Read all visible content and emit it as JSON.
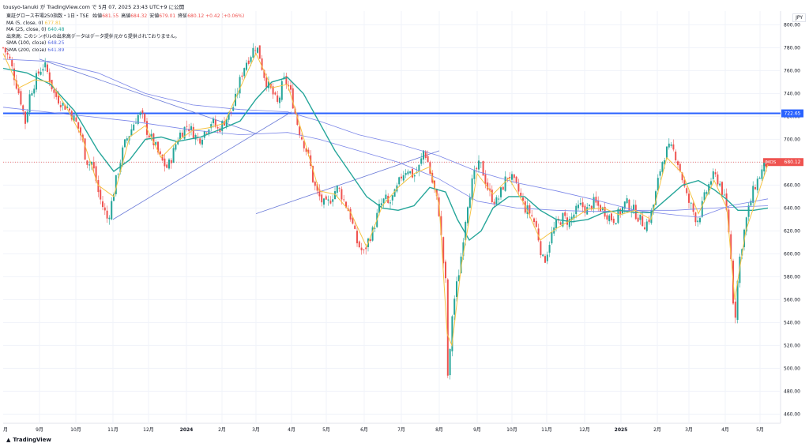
{
  "attribution": "tousyo-tanuki が TradingView.com で 5月 07, 2025 23:43 UTC+9 に公開",
  "legend": {
    "title": "東証グロース市場250指数・1日・TSE",
    "ohlc": [
      {
        "label": "始値",
        "value": "681.55"
      },
      {
        "label": "高値",
        "value": "684.32"
      },
      {
        "label": "安値",
        "value": "679.01"
      },
      {
        "label": "終値",
        "value": "680.12"
      }
    ],
    "change": "+0.42 (+0.06%)",
    "indicators": [
      {
        "name": "MA (5, close, 0)",
        "value": "677.81",
        "color": "#f6c343"
      },
      {
        "name": "MA (25, close, 0)",
        "value": "640.48",
        "color": "#26a69a"
      },
      {
        "name": "出来高: このシンボルの出来高データはデータ提供元から提供されておりません。",
        "value": "",
        "color": "#131722"
      },
      {
        "name": "SMA (100, close)",
        "value": "648.25",
        "color": "#5b6ee1"
      },
      {
        "name": "SMA (200, close)",
        "value": "641.89",
        "color": "#5b6ee1"
      }
    ]
  },
  "currency": "JPY",
  "branding": "TradingView",
  "colors": {
    "up": "#26a69a",
    "down": "#ef5350",
    "ma5": "#f6c343",
    "ma25": "#26a69a",
    "sma": "#7b86e8",
    "hline": "#2962ff",
    "last": "#ef5350",
    "grid": "#f0f3fa"
  },
  "chart_data": {
    "type": "candlestick",
    "symbol": "東証グロース市場250指数",
    "ylim": [
      452,
      812
    ],
    "y_ticks": [
      460,
      480,
      500,
      520,
      540,
      560,
      580,
      600,
      620,
      640,
      660,
      680,
      700,
      720,
      740,
      760,
      780,
      800
    ],
    "x_ticks": [
      "9月",
      "10月",
      "11月",
      "12月",
      "2024",
      "2月",
      "3月",
      "4月",
      "5月",
      "6月",
      "7月",
      "8月",
      "9月",
      "10月",
      "11月",
      "12月",
      "2025",
      "2月",
      "3月",
      "4月",
      "5月"
    ],
    "first_tick_label": "月",
    "horizontal_line": {
      "value": 722.65,
      "label": "722.65"
    },
    "last_price": {
      "value": 680.12,
      "label": "680.12",
      "tag": "JMOS"
    },
    "trendlines": [
      {
        "from": [
          "9月",
          770
        ],
        "to": [
          "3月",
          705
        ]
      },
      {
        "from": [
          "11月",
          630
        ],
        "to": [
          "4月",
          724
        ]
      },
      {
        "from": [
          "8月",
          690
        ],
        "to": [
          "3月",
          635
        ]
      }
    ],
    "price_path": [
      [
        0,
        780
      ],
      [
        8,
        770
      ],
      [
        16,
        750
      ],
      [
        22,
        735
      ],
      [
        28,
        715
      ],
      [
        34,
        740
      ],
      [
        40,
        750
      ],
      [
        46,
        760
      ],
      [
        52,
        765
      ],
      [
        58,
        755
      ],
      [
        64,
        740
      ],
      [
        70,
        735
      ],
      [
        76,
        730
      ],
      [
        82,
        728
      ],
      [
        88,
        720
      ],
      [
        94,
        712
      ],
      [
        100,
        700
      ],
      [
        104,
        685
      ],
      [
        108,
        678
      ],
      [
        112,
        680
      ],
      [
        116,
        670
      ],
      [
        120,
        655
      ],
      [
        124,
        645
      ],
      [
        128,
        638
      ],
      [
        132,
        630
      ],
      [
        136,
        640
      ],
      [
        140,
        655
      ],
      [
        144,
        668
      ],
      [
        148,
        680
      ],
      [
        152,
        692
      ],
      [
        156,
        700
      ],
      [
        160,
        705
      ],
      [
        164,
        712
      ],
      [
        168,
        718
      ],
      [
        172,
        722
      ],
      [
        176,
        720
      ],
      [
        180,
        710
      ],
      [
        184,
        705
      ],
      [
        188,
        700
      ],
      [
        192,
        695
      ],
      [
        196,
        688
      ],
      [
        200,
        682
      ],
      [
        204,
        678
      ],
      [
        208,
        675
      ],
      [
        212,
        682
      ],
      [
        216,
        690
      ],
      [
        220,
        700
      ],
      [
        224,
        705
      ],
      [
        228,
        708
      ],
      [
        232,
        712
      ],
      [
        236,
        710
      ],
      [
        240,
        706
      ],
      [
        244,
        702
      ],
      [
        248,
        700
      ],
      [
        252,
        704
      ],
      [
        256,
        708
      ],
      [
        260,
        712
      ],
      [
        264,
        716
      ],
      [
        268,
        712
      ],
      [
        272,
        708
      ],
      [
        276,
        712
      ],
      [
        280,
        716
      ],
      [
        284,
        720
      ],
      [
        288,
        724
      ],
      [
        292,
        730
      ],
      [
        296,
        740
      ],
      [
        300,
        752
      ],
      [
        304,
        762
      ],
      [
        308,
        768
      ],
      [
        312,
        772
      ],
      [
        316,
        778
      ],
      [
        320,
        782
      ],
      [
        324,
        775
      ],
      [
        328,
        762
      ],
      [
        332,
        752
      ],
      [
        336,
        746
      ],
      [
        340,
        742
      ],
      [
        344,
        735
      ],
      [
        348,
        730
      ],
      [
        352,
        745
      ],
      [
        356,
        752
      ],
      [
        360,
        748
      ],
      [
        364,
        740
      ],
      [
        368,
        728
      ],
      [
        372,
        715
      ],
      [
        376,
        705
      ],
      [
        380,
        698
      ],
      [
        384,
        690
      ],
      [
        388,
        680
      ],
      [
        392,
        665
      ],
      [
        396,
        655
      ],
      [
        400,
        650
      ],
      [
        404,
        645
      ],
      [
        408,
        642
      ],
      [
        412,
        645
      ],
      [
        416,
        650
      ],
      [
        420,
        655
      ],
      [
        424,
        658
      ],
      [
        428,
        652
      ],
      [
        432,
        645
      ],
      [
        436,
        640
      ],
      [
        440,
        632
      ],
      [
        444,
        620
      ],
      [
        448,
        610
      ],
      [
        452,
        605
      ],
      [
        456,
        600
      ],
      [
        460,
        608
      ],
      [
        464,
        615
      ],
      [
        468,
        620
      ],
      [
        472,
        630
      ],
      [
        476,
        640
      ],
      [
        480,
        645
      ],
      [
        484,
        648
      ],
      [
        488,
        642
      ],
      [
        492,
        648
      ],
      [
        496,
        652
      ],
      [
        500,
        660
      ],
      [
        504,
        668
      ],
      [
        508,
        672
      ],
      [
        512,
        675
      ],
      [
        516,
        670
      ],
      [
        520,
        668
      ],
      [
        524,
        672
      ],
      [
        528,
        678
      ],
      [
        532,
        690
      ],
      [
        536,
        685
      ],
      [
        540,
        672
      ],
      [
        544,
        660
      ],
      [
        548,
        650
      ],
      [
        552,
        635
      ],
      [
        556,
        600
      ],
      [
        560,
        575
      ],
      [
        562,
        500
      ],
      [
        564,
        485
      ],
      [
        566,
        520
      ],
      [
        568,
        545
      ],
      [
        572,
        565
      ],
      [
        576,
        580
      ],
      [
        580,
        600
      ],
      [
        584,
        625
      ],
      [
        588,
        645
      ],
      [
        592,
        658
      ],
      [
        596,
        668
      ],
      [
        600,
        675
      ],
      [
        604,
        678
      ],
      [
        608,
        670
      ],
      [
        612,
        660
      ],
      [
        616,
        652
      ],
      [
        620,
        648
      ],
      [
        624,
        645
      ],
      [
        628,
        650
      ],
      [
        632,
        658
      ],
      [
        636,
        665
      ],
      [
        640,
        670
      ],
      [
        644,
        665
      ],
      [
        648,
        660
      ],
      [
        652,
        655
      ],
      [
        656,
        648
      ],
      [
        660,
        640
      ],
      [
        664,
        638
      ],
      [
        668,
        635
      ],
      [
        672,
        628
      ],
      [
        676,
        620
      ],
      [
        680,
        605
      ],
      [
        684,
        592
      ],
      [
        688,
        600
      ],
      [
        692,
        612
      ],
      [
        696,
        620
      ],
      [
        700,
        625
      ],
      [
        704,
        628
      ],
      [
        708,
        632
      ],
      [
        712,
        630
      ],
      [
        716,
        628
      ],
      [
        720,
        632
      ],
      [
        724,
        636
      ],
      [
        728,
        640
      ],
      [
        732,
        642
      ],
      [
        736,
        640
      ],
      [
        740,
        638
      ],
      [
        744,
        642
      ],
      [
        748,
        645
      ],
      [
        752,
        642
      ],
      [
        756,
        640
      ],
      [
        760,
        638
      ],
      [
        764,
        635
      ],
      [
        768,
        632
      ],
      [
        772,
        630
      ],
      [
        776,
        632
      ],
      [
        780,
        636
      ],
      [
        784,
        640
      ],
      [
        788,
        645
      ],
      [
        792,
        642
      ],
      [
        796,
        640
      ],
      [
        800,
        636
      ],
      [
        804,
        632
      ],
      [
        808,
        628
      ],
      [
        812,
        626
      ],
      [
        816,
        628
      ],
      [
        820,
        635
      ],
      [
        824,
        645
      ],
      [
        828,
        660
      ],
      [
        832,
        675
      ],
      [
        836,
        685
      ],
      [
        840,
        690
      ],
      [
        844,
        692
      ],
      [
        848,
        690
      ],
      [
        852,
        685
      ],
      [
        856,
        675
      ],
      [
        860,
        665
      ],
      [
        864,
        652
      ],
      [
        868,
        645
      ],
      [
        872,
        640
      ],
      [
        876,
        632
      ],
      [
        880,
        630
      ],
      [
        884,
        640
      ],
      [
        888,
        650
      ],
      [
        892,
        658
      ],
      [
        896,
        665
      ],
      [
        900,
        668
      ],
      [
        904,
        665
      ],
      [
        908,
        660
      ],
      [
        912,
        650
      ],
      [
        916,
        635
      ],
      [
        920,
        610
      ],
      [
        922,
        585
      ],
      [
        924,
        560
      ],
      [
        926,
        540
      ],
      [
        928,
        560
      ],
      [
        930,
        580
      ],
      [
        932,
        595
      ],
      [
        936,
        612
      ],
      [
        940,
        628
      ],
      [
        944,
        640
      ],
      [
        948,
        652
      ],
      [
        952,
        660
      ],
      [
        956,
        666
      ],
      [
        960,
        672
      ],
      [
        964,
        676
      ],
      [
        968,
        680
      ]
    ],
    "ma5_path": [
      [
        0,
        775
      ],
      [
        20,
        745
      ],
      [
        40,
        752
      ],
      [
        60,
        750
      ],
      [
        80,
        728
      ],
      [
        100,
        702
      ],
      [
        120,
        660
      ],
      [
        140,
        650
      ],
      [
        160,
        702
      ],
      [
        180,
        712
      ],
      [
        200,
        684
      ],
      [
        220,
        698
      ],
      [
        240,
        708
      ],
      [
        260,
        710
      ],
      [
        280,
        714
      ],
      [
        300,
        745
      ],
      [
        320,
        775
      ],
      [
        340,
        745
      ],
      [
        360,
        748
      ],
      [
        380,
        702
      ],
      [
        400,
        655
      ],
      [
        420,
        652
      ],
      [
        440,
        636
      ],
      [
        460,
        606
      ],
      [
        480,
        642
      ],
      [
        500,
        658
      ],
      [
        520,
        670
      ],
      [
        540,
        676
      ],
      [
        552,
        642
      ],
      [
        562,
        530
      ],
      [
        568,
        520
      ],
      [
        580,
        590
      ],
      [
        600,
        670
      ],
      [
        620,
        652
      ],
      [
        640,
        666
      ],
      [
        660,
        643
      ],
      [
        680,
        612
      ],
      [
        700,
        622
      ],
      [
        720,
        630
      ],
      [
        740,
        639
      ],
      [
        760,
        640
      ],
      [
        780,
        634
      ],
      [
        800,
        638
      ],
      [
        820,
        630
      ],
      [
        840,
        684
      ],
      [
        860,
        670
      ],
      [
        880,
        635
      ],
      [
        900,
        664
      ],
      [
        916,
        640
      ],
      [
        926,
        560
      ],
      [
        940,
        620
      ],
      [
        968,
        678
      ]
    ],
    "ma25_path": [
      [
        0,
        762
      ],
      [
        30,
        758
      ],
      [
        60,
        748
      ],
      [
        90,
        725
      ],
      [
        120,
        690
      ],
      [
        140,
        672
      ],
      [
        160,
        682
      ],
      [
        180,
        700
      ],
      [
        200,
        702
      ],
      [
        220,
        698
      ],
      [
        250,
        702
      ],
      [
        280,
        710
      ],
      [
        300,
        716
      ],
      [
        320,
        735
      ],
      [
        340,
        750
      ],
      [
        360,
        754
      ],
      [
        380,
        740
      ],
      [
        400,
        715
      ],
      [
        420,
        690
      ],
      [
        440,
        670
      ],
      [
        460,
        650
      ],
      [
        480,
        640
      ],
      [
        500,
        638
      ],
      [
        520,
        642
      ],
      [
        540,
        658
      ],
      [
        560,
        654
      ],
      [
        575,
        630
      ],
      [
        590,
        612
      ],
      [
        605,
        620
      ],
      [
        620,
        640
      ],
      [
        640,
        650
      ],
      [
        660,
        650
      ],
      [
        680,
        638
      ],
      [
        700,
        630
      ],
      [
        720,
        628
      ],
      [
        740,
        630
      ],
      [
        760,
        636
      ],
      [
        780,
        638
      ],
      [
        800,
        636
      ],
      [
        820,
        636
      ],
      [
        840,
        648
      ],
      [
        860,
        660
      ],
      [
        880,
        664
      ],
      [
        900,
        656
      ],
      [
        915,
        648
      ],
      [
        930,
        638
      ],
      [
        950,
        638
      ],
      [
        968,
        640
      ]
    ],
    "sma100_path": [
      [
        0,
        770
      ],
      [
        60,
        768
      ],
      [
        120,
        758
      ],
      [
        180,
        740
      ],
      [
        240,
        730
      ],
      [
        300,
        726
      ],
      [
        360,
        724
      ],
      [
        400,
        716
      ],
      [
        450,
        704
      ],
      [
        500,
        696
      ],
      [
        550,
        686
      ],
      [
        600,
        672
      ],
      [
        650,
        662
      ],
      [
        700,
        655
      ],
      [
        750,
        647
      ],
      [
        800,
        638
      ],
      [
        850,
        634
      ],
      [
        880,
        632
      ],
      [
        920,
        642
      ],
      [
        968,
        648
      ]
    ],
    "sma200_path": [
      [
        0,
        728
      ],
      [
        80,
        722
      ],
      [
        160,
        716
      ],
      [
        240,
        708
      ],
      [
        300,
        704
      ],
      [
        360,
        706
      ],
      [
        400,
        700
      ],
      [
        450,
        690
      ],
      [
        500,
        680
      ],
      [
        550,
        666
      ],
      [
        600,
        646
      ],
      [
        650,
        640
      ],
      [
        700,
        638
      ],
      [
        750,
        637
      ],
      [
        800,
        638
      ],
      [
        850,
        638
      ],
      [
        900,
        640
      ],
      [
        968,
        642
      ]
    ]
  }
}
